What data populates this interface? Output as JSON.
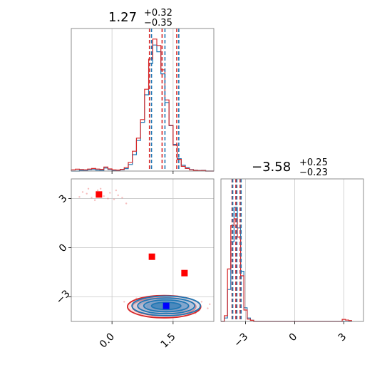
{
  "chart_data": {
    "type": "corner",
    "x_param": {
      "title": {
        "value": "1.27",
        "plus": "+0.32",
        "minus": "−0.35"
      },
      "ticks": [
        0.0,
        1.5
      ],
      "tick_labels": [
        "0.0",
        "1.5"
      ],
      "range": [
        -1.0,
        2.5
      ]
    },
    "y_param": {
      "title": {
        "value": "−3.58",
        "plus": "+0.25",
        "minus": "−0.23"
      },
      "ticks": [
        -3,
        0,
        3
      ],
      "tick_labels": [
        "−3",
        "0",
        "3"
      ],
      "range": [
        -4.5,
        4.2
      ]
    },
    "x_hist": {
      "bins": [
        -1.0,
        -0.9,
        -0.8,
        -0.7,
        -0.6,
        -0.5,
        -0.4,
        -0.3,
        -0.2,
        -0.1,
        0.0,
        0.1,
        0.2,
        0.3,
        0.4,
        0.5,
        0.6,
        0.7,
        0.8,
        0.9,
        1.0,
        1.1,
        1.2,
        1.3,
        1.4,
        1.5,
        1.6,
        1.7,
        1.8,
        1.9,
        2.0,
        2.1,
        2.2,
        2.3,
        2.4,
        2.5
      ],
      "series": [
        {
          "color": "#1f77b4",
          "values": [
            0,
            0,
            0.5,
            0.4,
            0.9,
            1.1,
            0.7,
            0.5,
            2.1,
            1.1,
            0.3,
            0.4,
            0.9,
            1.7,
            4.6,
            11.5,
            21.4,
            34.2,
            53.5,
            75.5,
            88.4,
            83.7,
            68.2,
            48.1,
            31.8,
            18.7,
            8.7,
            4.1,
            2.3,
            1.1,
            0.6,
            0.4,
            0.5,
            0,
            0
          ]
        },
        {
          "color": "#d62728",
          "values": [
            0.9,
            1.3,
            1.1,
            0.9,
            1.4,
            1.8,
            1.4,
            1.2,
            2.8,
            1.5,
            0.8,
            0.7,
            1.2,
            2.4,
            6.1,
            13.9,
            23.1,
            36.1,
            57.4,
            78.6,
            92.6,
            88.1,
            71.0,
            49.9,
            32.1,
            18.1,
            8.2,
            3.3,
            1.8,
            0.9,
            0.5,
            0.3,
            0.4,
            0,
            0
          ]
        }
      ],
      "ymax": 100,
      "quantiles": [
        {
          "color": "#d62728",
          "values": [
            0.92,
            1.23,
            1.59
          ]
        },
        {
          "color": "#1f77b4",
          "values": [
            0.97,
            1.3,
            1.64
          ]
        }
      ]
    },
    "y_hist": {
      "bins": [
        -4.5,
        -4.3,
        -4.1,
        -3.9,
        -3.7,
        -3.5,
        -3.3,
        -3.1,
        -2.9,
        -2.7,
        -2.5,
        -2.3,
        -2.1,
        -1.9,
        -1.7,
        -1.5,
        -1.3,
        -1.1,
        -0.9,
        -0.7,
        -0.5,
        -0.3,
        -0.1,
        0.1,
        0.3,
        0.5,
        0.7,
        0.9,
        1.1,
        1.3,
        1.5,
        1.7,
        1.9,
        2.1,
        2.3,
        2.5,
        2.7,
        2.9,
        3.1,
        3.3,
        3.5
      ],
      "series": [
        {
          "color": "#1f77b4",
          "values": [
            0,
            3,
            28,
            70,
            100,
            82,
            44,
            12,
            3,
            1,
            0,
            0,
            0,
            0,
            0,
            0,
            0,
            0,
            0,
            0,
            0,
            0,
            0,
            0,
            0,
            0,
            0,
            0,
            0,
            0,
            0,
            0,
            0,
            0,
            0,
            0,
            0,
            0,
            0,
            0
          ]
        },
        {
          "color": "#d62728",
          "values": [
            0,
            5,
            46,
            84,
            90,
            74,
            40,
            10,
            2,
            1,
            0,
            0,
            0,
            0,
            0,
            0,
            0,
            0,
            0,
            0,
            0,
            0,
            0,
            0,
            0,
            0,
            0,
            0,
            0,
            0,
            0,
            0,
            0,
            0,
            0,
            0,
            0,
            1.8,
            1.2,
            0.8
          ]
        }
      ],
      "ymax": 125,
      "quantiles": [
        {
          "color": "#d62728",
          "values": [
            -3.82,
            -3.59,
            -3.33
          ]
        },
        {
          "color": "#1f77b4",
          "values": [
            -3.78,
            -3.53,
            -3.27
          ]
        }
      ]
    },
    "joint": {
      "contours": [
        {
          "color": "#d62728",
          "cx": 1.28,
          "cy": -3.6,
          "rx": [
            0.9,
            0.78,
            0.62,
            0.42
          ],
          "ry": [
            0.68,
            0.55,
            0.42,
            0.28
          ]
        },
        {
          "color": "#1f77b4",
          "cx": 1.33,
          "cy": -3.55,
          "rx": [
            0.84,
            0.7,
            0.55,
            0.36
          ],
          "ry": [
            0.6,
            0.48,
            0.36,
            0.22
          ]
        }
      ],
      "scatter": [
        {
          "x": -0.62,
          "y": 3.3
        },
        {
          "x": -0.5,
          "y": 3.05
        },
        {
          "x": -0.35,
          "y": 3.5
        },
        {
          "x": -0.2,
          "y": 3.15
        },
        {
          "x": -0.05,
          "y": 3.35
        },
        {
          "x": 0.05,
          "y": 2.95
        },
        {
          "x": 0.15,
          "y": 3.2
        },
        {
          "x": -0.42,
          "y": 2.9
        },
        {
          "x": -0.72,
          "y": 3.4
        },
        {
          "x": -0.28,
          "y": 3.6
        },
        {
          "x": 0.35,
          "y": 2.7
        },
        {
          "x": -0.1,
          "y": 3.0
        },
        {
          "x": 0.1,
          "y": 3.5
        },
        {
          "x": -0.58,
          "y": 3.6
        },
        {
          "x": 0.25,
          "y": 3.05
        },
        {
          "x": -0.8,
          "y": 3.1
        },
        {
          "x": 0.3,
          "y": -3.3
        },
        {
          "x": 0.45,
          "y": -3.9
        },
        {
          "x": 2.2,
          "y": -3.3
        },
        {
          "x": 2.35,
          "y": -3.7
        },
        {
          "x": 0.6,
          "y": -3.1
        },
        {
          "x": 2.05,
          "y": -4.0
        },
        {
          "x": 0.5,
          "y": -3.6
        },
        {
          "x": 2.4,
          "y": -3.45
        }
      ],
      "markers": [
        {
          "x": -0.32,
          "y": 3.25,
          "color": "#ff0000"
        },
        {
          "x": 0.98,
          "y": -0.55,
          "color": "#ff0000"
        },
        {
          "x": 1.78,
          "y": -1.55,
          "color": "#ff0000"
        },
        {
          "x": 1.33,
          "y": -3.55,
          "color": "#0000ff"
        }
      ]
    },
    "grid": true
  }
}
